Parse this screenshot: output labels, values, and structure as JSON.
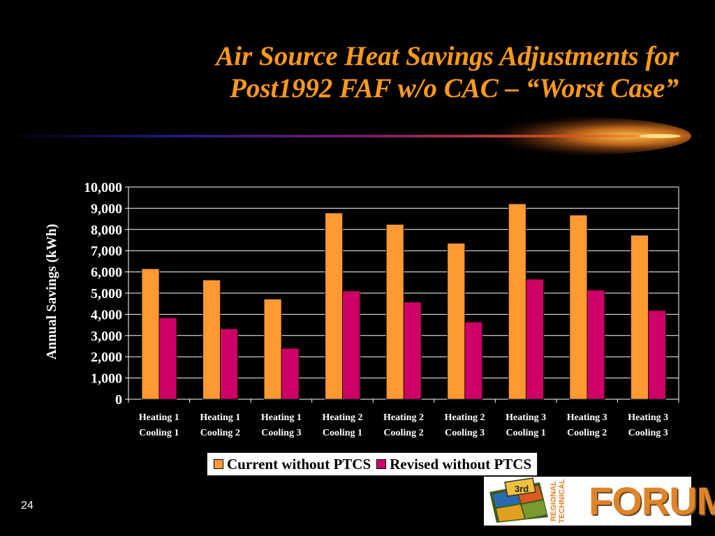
{
  "slide": {
    "title_line1": "Air Source Heat Savings Adjustments for",
    "title_line2": "Post1992 FAF w/o CAC – “Worst Case”",
    "page_number": "24"
  },
  "logo": {
    "number": "3rd",
    "side_line1": "REGIONAL",
    "side_line2": "TECHNICAL",
    "word": "FORUM"
  },
  "colors": {
    "background": "#000000",
    "title": "#ff9a1a",
    "series_current": "#ff9933",
    "series_revised": "#cc0066"
  },
  "chart_data": {
    "type": "bar",
    "title": "",
    "xlabel": "",
    "ylabel": "Annual Savings (kWh)",
    "ylim": [
      0,
      10000
    ],
    "yticks": [
      0,
      1000,
      2000,
      3000,
      4000,
      5000,
      6000,
      7000,
      8000,
      9000,
      10000
    ],
    "ytick_labels": [
      "0",
      "1,000",
      "2,000",
      "3,000",
      "4,000",
      "5,000",
      "6,000",
      "7,000",
      "8,000",
      "9,000",
      "10,000"
    ],
    "grid": true,
    "legend_position": "bottom",
    "categories": [
      [
        "Heating 1",
        "Cooling 1"
      ],
      [
        "Heating 1",
        "Cooling 2"
      ],
      [
        "Heating 1",
        "Cooling 3"
      ],
      [
        "Heating 2",
        "Cooling 1"
      ],
      [
        "Heating 2",
        "Cooling 2"
      ],
      [
        "Heating 2",
        "Cooling 3"
      ],
      [
        "Heating 3",
        "Cooling 1"
      ],
      [
        "Heating 3",
        "Cooling 2"
      ],
      [
        "Heating 3",
        "Cooling 3"
      ]
    ],
    "series": [
      {
        "name": "Current without PTCS",
        "color": "#ff9933",
        "values": [
          6150,
          5620,
          4720,
          8780,
          8240,
          7350,
          9210,
          8680,
          7730
        ]
      },
      {
        "name": "Revised without PTCS",
        "color": "#cc0066",
        "values": [
          3840,
          3320,
          2400,
          5100,
          4580,
          3640,
          5660,
          5140,
          4180
        ]
      }
    ]
  }
}
